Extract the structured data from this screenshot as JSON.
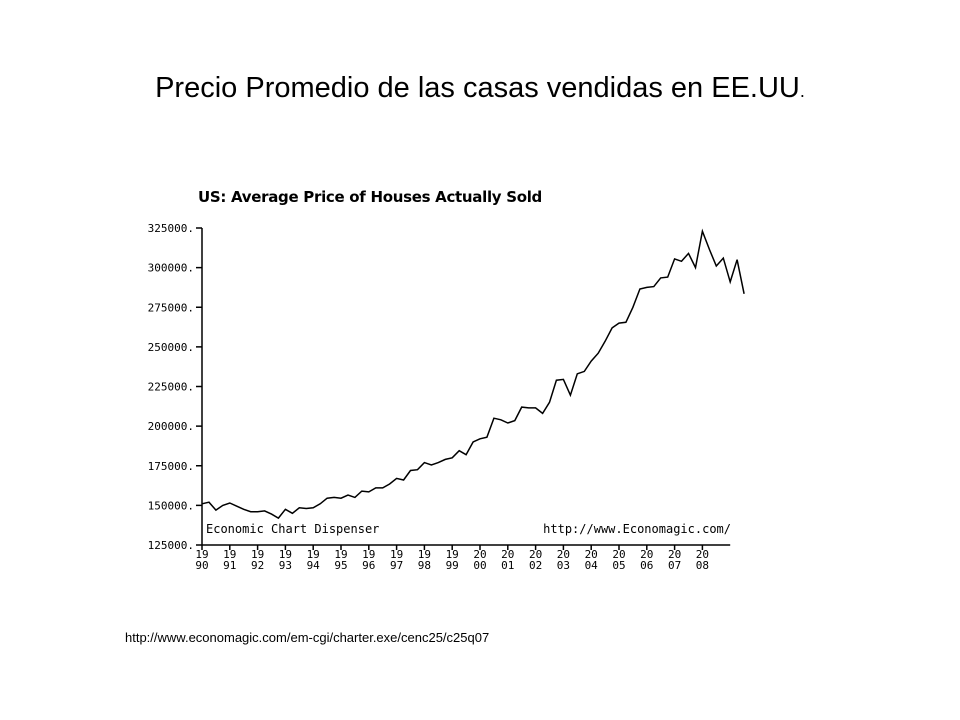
{
  "slide": {
    "title": "Precio Promedio de las casas vendidas en EE.UU",
    "title_dot": ".",
    "source_url": "http://www.economagic.com/em-cgi/charter.exe/cenc25/c25q07"
  },
  "chart_data": {
    "type": "line",
    "title": "US: Average Price of Houses Actually Sold",
    "ylim": [
      125000,
      325000
    ],
    "y_ticks": [
      "325000.",
      "300000.",
      "275000.",
      "250000.",
      "225000.",
      "200000.",
      "175000.",
      "150000.",
      "125000."
    ],
    "y_tick_values": [
      325000,
      300000,
      275000,
      250000,
      225000,
      200000,
      175000,
      150000,
      125000
    ],
    "x_tick_top": [
      "19",
      "19",
      "19",
      "19",
      "19",
      "19",
      "19",
      "19",
      "19",
      "19",
      "20",
      "20",
      "20",
      "20",
      "20",
      "20",
      "20",
      "20",
      "20"
    ],
    "x_tick_bottom": [
      "90",
      "91",
      "92",
      "93",
      "94",
      "95",
      "96",
      "97",
      "98",
      "99",
      "00",
      "01",
      "02",
      "03",
      "04",
      "05",
      "06",
      "07",
      "08"
    ],
    "x_range": [
      1990,
      2009
    ],
    "grid": false,
    "annotation_left": "Economic Chart Dispenser",
    "annotation_right": "http://www.Economagic.com/",
    "series": [
      {
        "frequency": "quarterly",
        "x_start": 1990.0,
        "values": [
          151000,
          152000,
          147000,
          150000,
          151500,
          149500,
          147500,
          146000,
          146000,
          146500,
          144500,
          142000,
          147500,
          145000,
          148500,
          148000,
          148500,
          151000,
          154500,
          155000,
          154500,
          156500,
          155000,
          159000,
          158500,
          161000,
          161000,
          163500,
          167000,
          166000,
          172000,
          172500,
          177000,
          175500,
          177000,
          179000,
          180000,
          184500,
          182000,
          190000,
          192000,
          193000,
          205000,
          204000,
          202000,
          203500,
          212000,
          211500,
          211500,
          208000,
          215000,
          229000,
          229500,
          219500,
          233000,
          234500,
          241000,
          246000,
          253500,
          262000,
          265000,
          265500,
          275000,
          286500,
          287500,
          288000,
          293500,
          294000,
          305500,
          304000,
          309000,
          300000,
          323000,
          311500,
          301000,
          306000,
          291000,
          305000,
          283500
        ]
      }
    ],
    "line_color": "#000000"
  }
}
